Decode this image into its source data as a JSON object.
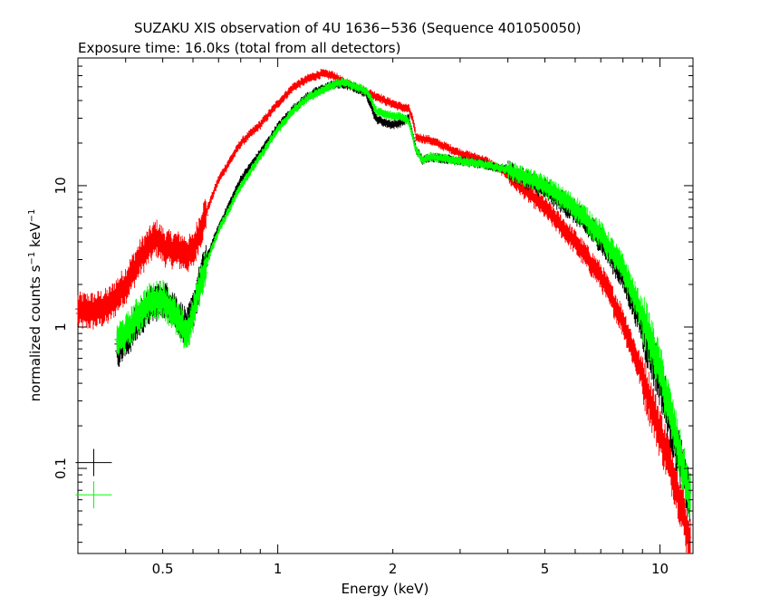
{
  "title": "SUZAKU XIS observation of 4U 1636−536 (Sequence 401050050)",
  "subtitle": "Exposure time: 16.0ks (total from all detectors)",
  "chart_data": {
    "type": "scatter",
    "title": "SUZAKU XIS observation of 4U 1636−536 (Sequence 401050050)",
    "subtitle": "Exposure time: 16.0ks (total from all detectors)",
    "xlabel": "Energy (keV)",
    "ylabel_parts": [
      "normalized counts s",
      "−1",
      " keV",
      "−1"
    ],
    "x_scale": "log",
    "y_scale": "log",
    "xlim": [
      0.3,
      12.2
    ],
    "ylim": [
      0.025,
      80
    ],
    "x_ticks": [
      {
        "value": 0.5,
        "label": "0.5"
      },
      {
        "value": 1,
        "label": "1"
      },
      {
        "value": 2,
        "label": "2"
      },
      {
        "value": 5,
        "label": "5"
      },
      {
        "value": 10,
        "label": "10"
      }
    ],
    "y_ticks": [
      {
        "value": 0.1,
        "label": "0.1"
      },
      {
        "value": 1,
        "label": "1"
      },
      {
        "value": 10,
        "label": "10"
      }
    ],
    "grid": false,
    "legend": "none",
    "series": [
      {
        "color": "#ff0000",
        "x": [
          0.3,
          0.33,
          0.36,
          0.4,
          0.44,
          0.48,
          0.51,
          0.55,
          0.58,
          0.6,
          0.62,
          0.65,
          0.7,
          0.75,
          0.8,
          0.9,
          1.0,
          1.1,
          1.2,
          1.3,
          1.4,
          1.5,
          1.6,
          1.7,
          1.8,
          1.85,
          1.9,
          2.0,
          2.1,
          2.2,
          2.25,
          2.3,
          2.5,
          3.0,
          3.5,
          4.0,
          5.0,
          6.0,
          7.0,
          8.0,
          9.0,
          10.0,
          11.0,
          12.0
        ],
        "y": [
          1.3,
          1.3,
          1.4,
          2.0,
          3.2,
          4.3,
          3.6,
          3.5,
          3.3,
          3.4,
          4.5,
          6.5,
          11,
          15,
          20,
          27,
          38,
          50,
          57,
          62,
          60,
          53,
          50,
          46,
          43,
          42,
          40,
          38,
          36,
          35,
          30,
          22,
          21,
          17,
          15,
          12,
          7.0,
          4.0,
          2.3,
          1.1,
          0.45,
          0.18,
          0.08,
          0.03
        ]
      },
      {
        "color": "#000000",
        "x": [
          0.38,
          0.4,
          0.43,
          0.46,
          0.5,
          0.53,
          0.56,
          0.58,
          0.6,
          0.62,
          0.65,
          0.7,
          0.75,
          0.8,
          0.9,
          1.0,
          1.1,
          1.2,
          1.3,
          1.4,
          1.5,
          1.6,
          1.7,
          1.75,
          1.8,
          1.9,
          2.0,
          2.1,
          2.2,
          2.3,
          2.4,
          2.5,
          3.0,
          3.5,
          4.0,
          5.0,
          6.0,
          7.0,
          8.0,
          9.0,
          10.0,
          11.0,
          12.0
        ],
        "y": [
          0.7,
          0.8,
          1.1,
          1.4,
          1.6,
          1.4,
          1.1,
          1.0,
          1.3,
          1.9,
          3.0,
          5.0,
          7.5,
          11,
          17,
          26,
          35,
          43,
          48,
          52,
          52,
          49,
          45,
          38,
          30,
          28,
          27,
          28,
          30,
          18,
          15,
          16,
          15,
          14,
          13,
          9.5,
          6.5,
          4.2,
          2.3,
          1.0,
          0.42,
          0.15,
          0.06
        ]
      },
      {
        "color": "#00ff00",
        "x": [
          0.38,
          0.4,
          0.43,
          0.46,
          0.5,
          0.53,
          0.56,
          0.58,
          0.6,
          0.62,
          0.65,
          0.7,
          0.75,
          0.8,
          0.9,
          1.0,
          1.1,
          1.2,
          1.3,
          1.4,
          1.5,
          1.6,
          1.7,
          1.75,
          1.8,
          1.9,
          2.0,
          2.1,
          2.2,
          2.3,
          2.4,
          2.5,
          3.0,
          3.5,
          4.0,
          5.0,
          6.0,
          7.0,
          8.0,
          9.0,
          10.0,
          11.0,
          12.0
        ],
        "y": [
          0.8,
          0.9,
          1.2,
          1.5,
          1.6,
          1.3,
          1.0,
          0.9,
          1.2,
          1.8,
          2.8,
          4.8,
          7.0,
          10,
          16,
          25,
          34,
          42,
          47,
          52,
          54,
          50,
          47,
          42,
          34,
          32,
          31,
          31,
          29,
          18,
          15,
          16,
          15,
          14,
          13,
          10,
          7.0,
          4.5,
          2.6,
          1.2,
          0.5,
          0.17,
          0.06
        ]
      }
    ],
    "legend_markers": [
      {
        "color": "#000000",
        "x": 0.33,
        "y": 0.11
      },
      {
        "color": "#00ff00",
        "x": 0.33,
        "y": 0.065
      }
    ]
  }
}
